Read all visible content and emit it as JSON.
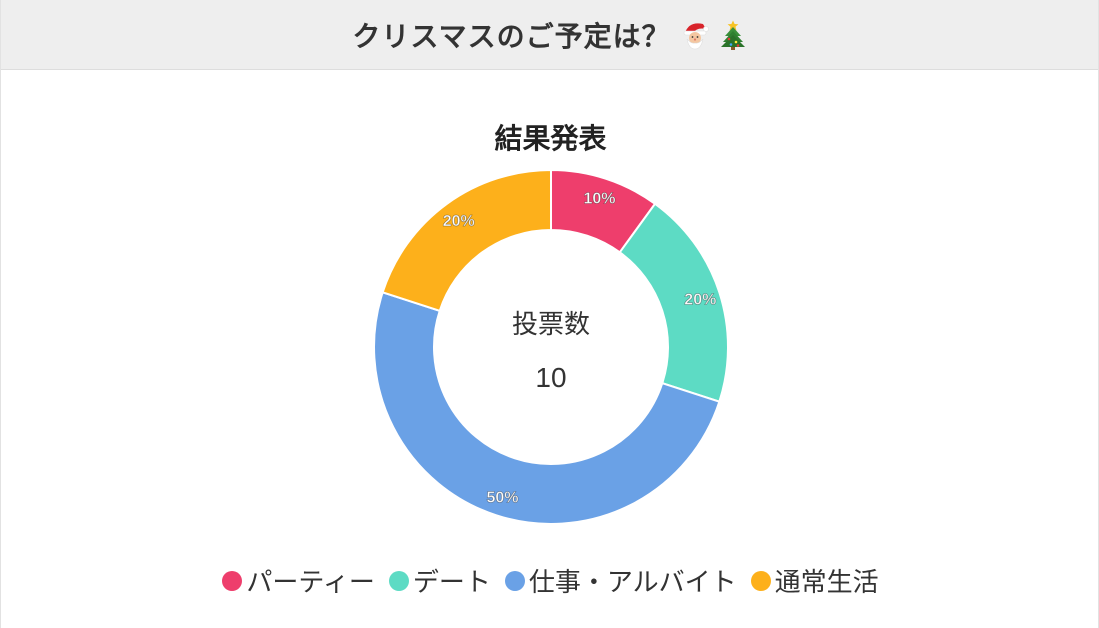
{
  "header": {
    "title": "クリスマスのご予定は？",
    "icons": [
      "santa-icon",
      "christmas-tree-icon"
    ]
  },
  "chart_data": {
    "type": "pie",
    "variant": "doughnut",
    "title": "結果発表",
    "center_label": "投票数",
    "center_value": "10",
    "categories": [
      "パーティー",
      "デート",
      "仕事・アルバイト",
      "通常生活"
    ],
    "values": [
      10,
      20,
      50,
      20
    ],
    "data_labels": [
      "10%",
      "20%",
      "50%",
      "20%"
    ],
    "colors": [
      "#ee3e6c",
      "#5ddbc4",
      "#6aa1e6",
      "#fdb01b"
    ],
    "legend_position": "bottom"
  }
}
